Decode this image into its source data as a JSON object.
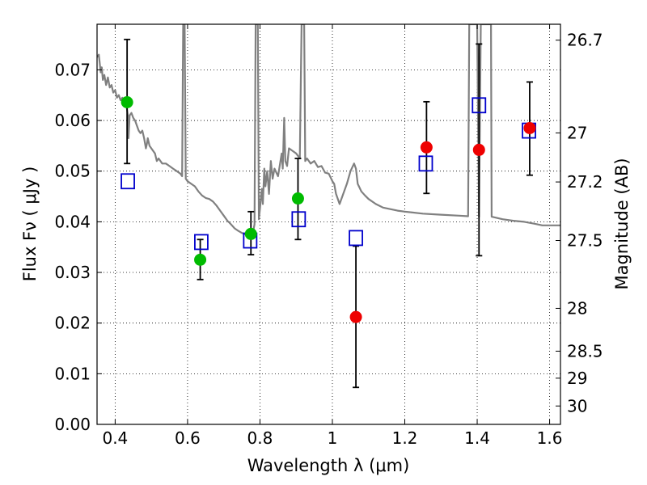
{
  "chart_data": {
    "type": "scatter",
    "xlabel": "Wavelength  λ (μm)",
    "ylabel": "Flux  Fν  ( μJy )",
    "ylabel_right": "Magnitude (AB)",
    "xlim": [
      0.35,
      1.63
    ],
    "ylim": [
      0.0,
      0.079
    ],
    "grid": true,
    "x_ticks": [
      {
        "value": 0.4,
        "label": "0.4"
      },
      {
        "value": 0.6,
        "label": "0.6"
      },
      {
        "value": 0.8,
        "label": "0.8"
      },
      {
        "value": 1.0,
        "label": "1"
      },
      {
        "value": 1.2,
        "label": "1.2"
      },
      {
        "value": 1.4,
        "label": "1.4"
      },
      {
        "value": 1.6,
        "label": "1.6"
      }
    ],
    "y_ticks": [
      {
        "value": 0.0,
        "label": "0.00"
      },
      {
        "value": 0.01,
        "label": "0.01"
      },
      {
        "value": 0.02,
        "label": "0.02"
      },
      {
        "value": 0.03,
        "label": "0.03"
      },
      {
        "value": 0.04,
        "label": "0.04"
      },
      {
        "value": 0.05,
        "label": "0.05"
      },
      {
        "value": 0.06,
        "label": "0.06"
      },
      {
        "value": 0.07,
        "label": "0.07"
      }
    ],
    "mag_ticks": [
      {
        "value": 26.7,
        "label": "26.7"
      },
      {
        "value": 27,
        "label": "27"
      },
      {
        "value": 27.2,
        "label": "27.2"
      },
      {
        "value": 27.5,
        "label": "27.5"
      },
      {
        "value": 28,
        "label": "28"
      },
      {
        "value": 28.5,
        "label": "28.5"
      },
      {
        "value": 29,
        "label": "29"
      },
      {
        "value": 30,
        "label": "30"
      }
    ],
    "series": [
      {
        "kind": "line",
        "color": "#808080",
        "points": [
          [
            0.35,
            0.0725
          ],
          [
            0.355,
            0.073
          ],
          [
            0.36,
            0.0695
          ],
          [
            0.363,
            0.0705
          ],
          [
            0.366,
            0.068
          ],
          [
            0.37,
            0.069
          ],
          [
            0.375,
            0.067
          ],
          [
            0.38,
            0.0685
          ],
          [
            0.385,
            0.0665
          ],
          [
            0.39,
            0.067
          ],
          [
            0.395,
            0.0655
          ],
          [
            0.4,
            0.066
          ],
          [
            0.405,
            0.0645
          ],
          [
            0.41,
            0.065
          ],
          [
            0.415,
            0.064
          ],
          [
            0.42,
            0.0645
          ],
          [
            0.425,
            0.063
          ],
          [
            0.43,
            0.0636
          ],
          [
            0.435,
            0.061
          ],
          [
            0.437,
            0.0565
          ],
          [
            0.44,
            0.061
          ],
          [
            0.445,
            0.0615
          ],
          [
            0.45,
            0.0605
          ],
          [
            0.455,
            0.06
          ],
          [
            0.46,
            0.059
          ],
          [
            0.465,
            0.058
          ],
          [
            0.47,
            0.0575
          ],
          [
            0.475,
            0.058
          ],
          [
            0.48,
            0.0565
          ],
          [
            0.485,
            0.0545
          ],
          [
            0.488,
            0.0555
          ],
          [
            0.49,
            0.0565
          ],
          [
            0.495,
            0.055
          ],
          [
            0.5,
            0.0545
          ],
          [
            0.51,
            0.0535
          ],
          [
            0.515,
            0.052
          ],
          [
            0.52,
            0.0525
          ],
          [
            0.53,
            0.0515
          ],
          [
            0.54,
            0.0515
          ],
          [
            0.55,
            0.051
          ],
          [
            0.56,
            0.0505
          ],
          [
            0.57,
            0.05
          ],
          [
            0.58,
            0.0495
          ],
          [
            0.585,
            0.049
          ],
          [
            0.588,
            0.079
          ],
          [
            0.592,
            0.079
          ],
          [
            0.595,
            0.0485
          ],
          [
            0.6,
            0.048
          ],
          [
            0.61,
            0.0475
          ],
          [
            0.62,
            0.047
          ],
          [
            0.63,
            0.046
          ],
          [
            0.64,
            0.0452
          ],
          [
            0.65,
            0.0447
          ],
          [
            0.66,
            0.0445
          ],
          [
            0.67,
            0.044
          ],
          [
            0.68,
            0.0432
          ],
          [
            0.69,
            0.0422
          ],
          [
            0.7,
            0.0412
          ],
          [
            0.71,
            0.0402
          ],
          [
            0.72,
            0.0395
          ],
          [
            0.73,
            0.0387
          ],
          [
            0.74,
            0.0382
          ],
          [
            0.75,
            0.0378
          ],
          [
            0.76,
            0.0375
          ],
          [
            0.77,
            0.0372
          ],
          [
            0.78,
            0.0376
          ],
          [
            0.785,
            0.0395
          ],
          [
            0.788,
            0.079
          ],
          [
            0.794,
            0.079
          ],
          [
            0.797,
            0.0405
          ],
          [
            0.8,
            0.0425
          ],
          [
            0.805,
            0.0465
          ],
          [
            0.808,
            0.0435
          ],
          [
            0.812,
            0.0505
          ],
          [
            0.815,
            0.047
          ],
          [
            0.82,
            0.05
          ],
          [
            0.825,
            0.0455
          ],
          [
            0.83,
            0.052
          ],
          [
            0.835,
            0.0485
          ],
          [
            0.84,
            0.0505
          ],
          [
            0.85,
            0.049
          ],
          [
            0.86,
            0.0535
          ],
          [
            0.863,
            0.0505
          ],
          [
            0.867,
            0.0605
          ],
          [
            0.87,
            0.052
          ],
          [
            0.875,
            0.051
          ],
          [
            0.88,
            0.0545
          ],
          [
            0.89,
            0.054
          ],
          [
            0.9,
            0.0535
          ],
          [
            0.91,
            0.0525
          ],
          [
            0.915,
            0.079
          ],
          [
            0.922,
            0.079
          ],
          [
            0.925,
            0.052
          ],
          [
            0.93,
            0.0525
          ],
          [
            0.94,
            0.0515
          ],
          [
            0.95,
            0.052
          ],
          [
            0.96,
            0.0508
          ],
          [
            0.97,
            0.051
          ],
          [
            0.98,
            0.0497
          ],
          [
            0.99,
            0.0495
          ],
          [
            1.0,
            0.048
          ],
          [
            1.005,
            0.0475
          ],
          [
            1.01,
            0.0455
          ],
          [
            1.02,
            0.0435
          ],
          [
            1.03,
            0.0455
          ],
          [
            1.04,
            0.0475
          ],
          [
            1.05,
            0.05
          ],
          [
            1.06,
            0.0515
          ],
          [
            1.065,
            0.0505
          ],
          [
            1.07,
            0.0475
          ],
          [
            1.08,
            0.046
          ],
          [
            1.09,
            0.0452
          ],
          [
            1.1,
            0.0445
          ],
          [
            1.12,
            0.0435
          ],
          [
            1.14,
            0.0428
          ],
          [
            1.16,
            0.0425
          ],
          [
            1.18,
            0.0422
          ],
          [
            1.2,
            0.042
          ],
          [
            1.25,
            0.0416
          ],
          [
            1.3,
            0.0414
          ],
          [
            1.35,
            0.0412
          ],
          [
            1.375,
            0.0411
          ],
          [
            1.378,
            0.079
          ],
          [
            1.4,
            0.079
          ],
          [
            1.405,
            0.041
          ],
          [
            1.41,
            0.079
          ],
          [
            1.438,
            0.079
          ],
          [
            1.44,
            0.041
          ],
          [
            1.47,
            0.0405
          ],
          [
            1.5,
            0.0402
          ],
          [
            1.53,
            0.04
          ],
          [
            1.56,
            0.0396
          ],
          [
            1.58,
            0.0393
          ],
          [
            1.6,
            0.0393
          ],
          [
            1.63,
            0.0393
          ]
        ]
      },
      {
        "kind": "errorbar",
        "color": "#000000",
        "points": [
          {
            "x": 0.433,
            "low": 0.0515,
            "high": 0.076
          },
          {
            "x": 0.635,
            "low": 0.0286,
            "high": 0.0365
          },
          {
            "x": 0.775,
            "low": 0.0335,
            "high": 0.042
          },
          {
            "x": 0.905,
            "low": 0.0365,
            "high": 0.0525
          },
          {
            "x": 1.065,
            "low": 0.0073,
            "high": 0.0352
          },
          {
            "x": 1.26,
            "low": 0.0456,
            "high": 0.0637
          },
          {
            "x": 1.405,
            "low": 0.0333,
            "high": 0.0751
          },
          {
            "x": 1.545,
            "low": 0.0492,
            "high": 0.0676
          }
        ]
      },
      {
        "kind": "scatter",
        "marker": "square-open",
        "color": "#0000cc",
        "points": [
          [
            0.435,
            0.048
          ],
          [
            0.638,
            0.036
          ],
          [
            0.773,
            0.0363
          ],
          [
            0.907,
            0.0405
          ],
          [
            1.065,
            0.0368
          ],
          [
            1.258,
            0.0515
          ],
          [
            1.405,
            0.063
          ],
          [
            1.543,
            0.058
          ]
        ]
      },
      {
        "kind": "scatter",
        "marker": "circle",
        "color": "#00bb00",
        "points": [
          [
            0.433,
            0.0636
          ],
          [
            0.635,
            0.0325
          ],
          [
            0.775,
            0.0376
          ],
          [
            0.905,
            0.0446
          ]
        ]
      },
      {
        "kind": "scatter",
        "marker": "circle",
        "color": "#ee0000",
        "points": [
          [
            1.065,
            0.0212
          ],
          [
            1.26,
            0.0547
          ],
          [
            1.405,
            0.0542
          ],
          [
            1.545,
            0.0585
          ]
        ]
      }
    ]
  }
}
